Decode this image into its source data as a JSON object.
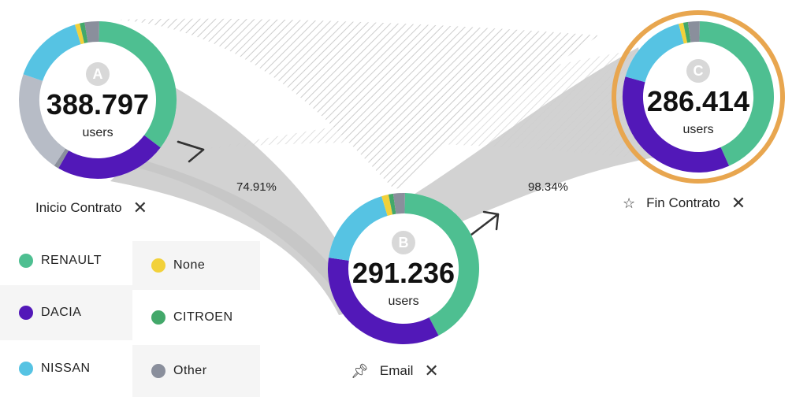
{
  "nodes": [
    {
      "letter": "A",
      "value": "388.797",
      "unit": "users",
      "label": "Inicio Contrato",
      "segments": [
        {
          "brand": "RENAULT",
          "share": 0.35
        },
        {
          "brand": "DACIA",
          "share": 0.23
        },
        {
          "brand": "Other",
          "share": 0.01
        },
        {
          "brand": "OTHER_GRAY",
          "share": 0.21
        },
        {
          "brand": "NISSAN",
          "share": 0.15
        },
        {
          "brand": "None",
          "share": 0.01
        },
        {
          "brand": "CITROEN",
          "share": 0.01
        },
        {
          "brand": "Other",
          "share": 0.03
        }
      ]
    },
    {
      "letter": "B",
      "value": "291.236",
      "unit": "users",
      "label": "Email",
      "segments": [
        {
          "brand": "RENAULT",
          "share": 0.42
        },
        {
          "brand": "DACIA",
          "share": 0.35
        },
        {
          "brand": "NISSAN",
          "share": 0.18
        },
        {
          "brand": "None",
          "share": 0.015
        },
        {
          "brand": "CITROEN",
          "share": 0.01
        },
        {
          "brand": "Other",
          "share": 0.025
        }
      ]
    },
    {
      "letter": "C",
      "value": "286.414",
      "unit": "users",
      "label": "Fin Contrato",
      "segments": [
        {
          "brand": "RENAULT",
          "share": 0.43
        },
        {
          "brand": "DACIA",
          "share": 0.36
        },
        {
          "brand": "NISSAN",
          "share": 0.165
        },
        {
          "brand": "None",
          "share": 0.01
        },
        {
          "brand": "CITROEN",
          "share": 0.01
        },
        {
          "brand": "Other",
          "share": 0.025
        }
      ]
    }
  ],
  "conversions": [
    "74.91%",
    "98.34%"
  ],
  "legend": [
    {
      "name": "RENAULT",
      "color": "#4ebf91"
    },
    {
      "name": "None",
      "color": "#f2d13a"
    },
    {
      "name": "DACIA",
      "color": "#5218b8"
    },
    {
      "name": "CITROEN",
      "color": "#43a86a"
    },
    {
      "name": "NISSAN",
      "color": "#56c3e3"
    },
    {
      "name": "Other",
      "color": "#8a8f9c"
    }
  ],
  "colors": {
    "RENAULT": "#4ebf91",
    "DACIA": "#5218b8",
    "NISSAN": "#56c3e3",
    "None": "#f2d13a",
    "CITROEN": "#43a86a",
    "Other": "#8a8f9c",
    "OTHER_GRAY": "#b7bcc6",
    "selected_ring": "#e8a64f",
    "flow": "#cfcfcf",
    "hatch": "#c8c8c8"
  },
  "icons": {
    "close": "close-icon",
    "star": "star-icon",
    "pin": "pin-icon",
    "arrow": "arrow-right-icon"
  }
}
